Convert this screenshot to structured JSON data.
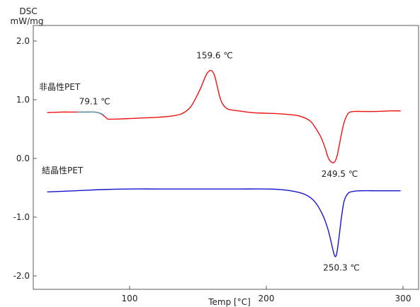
{
  "chart_data": {
    "type": "line",
    "xlabel": "Temp [°C]",
    "ylabel_line1": "DSC",
    "ylabel_line2": "mW/mg",
    "xlim": [
      35,
      300
    ],
    "ylim": [
      -2.2,
      2.2
    ],
    "x_ticks": [
      {
        "value": 100,
        "label": "100"
      },
      {
        "value": 200,
        "label": "200"
      },
      {
        "value": 300,
        "label": "300"
      }
    ],
    "y_ticks": [
      {
        "value": 2.0,
        "label": "2.0"
      },
      {
        "value": 1.0,
        "label": "1.0"
      },
      {
        "value": 0.0,
        "label": "0.0"
      },
      {
        "value": -1.0,
        "label": "-1.0"
      },
      {
        "value": -2.0,
        "label": "-2.0"
      }
    ],
    "grid": false,
    "series": [
      {
        "name": "非晶性PET",
        "color": "#ee1111",
        "x": [
          40,
          50,
          60,
          70,
          75,
          79,
          82,
          84,
          86,
          90,
          100,
          110,
          120,
          130,
          138,
          144,
          148,
          152,
          155,
          157,
          159.6,
          162,
          164,
          166,
          168,
          172,
          180,
          190,
          200,
          210,
          220,
          226,
          232,
          236,
          240,
          243,
          245,
          247,
          249.5,
          251.5,
          253,
          255,
          257,
          260,
          264,
          270,
          280,
          290,
          298
        ],
        "y": [
          0.78,
          0.79,
          0.79,
          0.79,
          0.79,
          0.76,
          0.71,
          0.67,
          0.67,
          0.67,
          0.68,
          0.69,
          0.7,
          0.72,
          0.76,
          0.86,
          1.01,
          1.2,
          1.37,
          1.46,
          1.5,
          1.42,
          1.24,
          1.05,
          0.93,
          0.84,
          0.81,
          0.78,
          0.77,
          0.76,
          0.74,
          0.71,
          0.64,
          0.52,
          0.36,
          0.18,
          0.03,
          -0.05,
          -0.07,
          0.02,
          0.18,
          0.42,
          0.62,
          0.77,
          0.8,
          0.8,
          0.8,
          0.81,
          0.81
        ]
      },
      {
        "name": "結晶性PET",
        "color": "#1515cc",
        "x": [
          40,
          60,
          80,
          100,
          120,
          140,
          160,
          180,
          200,
          210,
          220,
          228,
          234,
          238,
          242,
          245,
          247,
          249,
          250.3,
          251.5,
          253,
          255,
          257,
          260,
          264,
          270,
          280,
          290,
          298
        ],
        "y": [
          -0.57,
          -0.55,
          -0.53,
          -0.52,
          -0.52,
          -0.52,
          -0.52,
          -0.52,
          -0.52,
          -0.53,
          -0.56,
          -0.61,
          -0.7,
          -0.82,
          -1.0,
          -1.2,
          -1.38,
          -1.58,
          -1.67,
          -1.62,
          -1.38,
          -1.0,
          -0.72,
          -0.59,
          -0.56,
          -0.55,
          -0.55,
          -0.55,
          -0.55
        ]
      }
    ],
    "tg_segment": {
      "color": "#4a9fb0",
      "x": [
        62,
        68,
        74,
        78,
        81
      ],
      "y": [
        0.79,
        0.79,
        0.79,
        0.775,
        0.74
      ]
    },
    "annotations": [
      {
        "text": "79.1 ℃",
        "x": 79.1,
        "y": 0.79
      },
      {
        "text": "159.6 ℃",
        "x": 159.6,
        "y": 1.5
      },
      {
        "text": "249.5 ℃",
        "x": 249.5,
        "y": -0.07
      },
      {
        "text": "250.3 ℃",
        "x": 250.3,
        "y": -1.67
      }
    ]
  }
}
